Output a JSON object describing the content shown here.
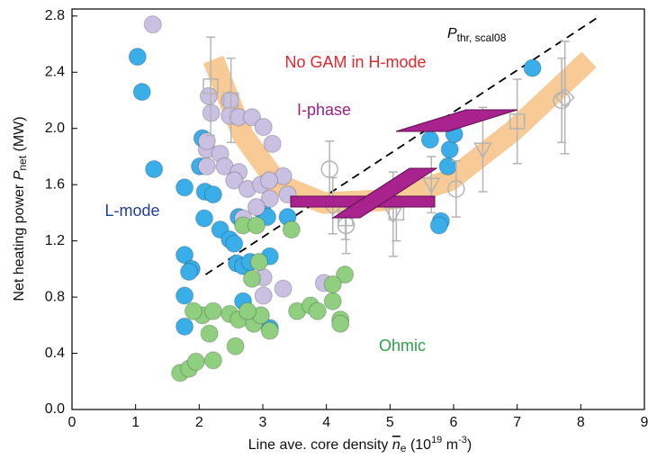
{
  "chart_data": {
    "type": "scatter",
    "ylabel": {
      "text": "Net heating power",
      "symbol": "P",
      "subscript": "net",
      "unit": "(MW)"
    },
    "xlabel": {
      "text": "Line ave. core density",
      "symbol": "n",
      "subscript": "e",
      "unit_parts": [
        "(10",
        "19",
        " m",
        "-3",
        ")"
      ]
    },
    "xlim": [
      0,
      9
    ],
    "xticks": [
      0,
      1,
      2,
      3,
      4,
      5,
      6,
      7,
      8,
      9
    ],
    "ylim": [
      0,
      2.85
    ],
    "yticks": [
      {
        "value": 0,
        "label": "0.0"
      },
      0.4,
      0.8,
      1.2,
      1.6,
      {
        "value": 2,
        "label": "2.0"
      },
      2.4,
      2.8
    ],
    "grid": false,
    "series": [
      {
        "name": "L-mode",
        "color": "#3aaee8",
        "label_color": "#1f3f90",
        "x": [
          1.03,
          1.1,
          1.29,
          1.77,
          2.05,
          2.01,
          2.09,
          2.08,
          2.33,
          2.48,
          2.55,
          1.77,
          1.88,
          1.84,
          1.77,
          1.77,
          2.59,
          2.69,
          2.8,
          3.0,
          3.07,
          3.11,
          3.39,
          2.69,
          3.11,
          5.63,
          5.94,
          6.01,
          5.91,
          5.8,
          5.77,
          7.24,
          2.22,
          2.62
        ],
        "values": [
          2.51,
          2.26,
          1.71,
          1.58,
          1.93,
          1.73,
          1.55,
          1.36,
          1.28,
          1.21,
          1.18,
          1.1,
          1.0,
          0.98,
          0.81,
          0.59,
          1.04,
          1.02,
          1.05,
          1.41,
          1.37,
          1.09,
          1.37,
          0.77,
          0.58,
          1.92,
          1.85,
          1.96,
          1.73,
          1.34,
          1.31,
          2.43,
          1.53,
          1.37
        ]
      },
      {
        "name": "I-phase",
        "color": "#c9c0e2",
        "label_color": "#9b1f88",
        "x": [
          1.27,
          2.15,
          2.19,
          2.48,
          2.48,
          2.62,
          2.83,
          3.01,
          2.12,
          2.33,
          2.12,
          2.4,
          2.62,
          2.55,
          2.76,
          2.97,
          3.11,
          2.9,
          2.69,
          2.12,
          3.32,
          3.1,
          3.39,
          3.01,
          3.01,
          3.32,
          3.96,
          3.15
        ],
        "values": [
          2.74,
          2.23,
          2.11,
          2.2,
          2.09,
          2.08,
          2.08,
          2.01,
          1.85,
          1.82,
          1.73,
          1.73,
          1.69,
          1.63,
          1.57,
          1.6,
          1.5,
          1.44,
          1.36,
          1.91,
          1.66,
          1.63,
          1.53,
          0.94,
          0.81,
          0.86,
          0.9,
          1.89
        ]
      },
      {
        "name": "Ohmic",
        "color": "#8fcf7f",
        "label_color": "#2e9d4a",
        "x": [
          1.7,
          1.84,
          1.95,
          2.22,
          2.57,
          2.16,
          2.05,
          1.91,
          2.22,
          2.48,
          2.62,
          2.86,
          2.97,
          3.11,
          2.76,
          2.83,
          2.94,
          2.69,
          2.9,
          3.45,
          3.54,
          3.75,
          4.1,
          4.29,
          4.22,
          4.22,
          3.86,
          4.1
        ],
        "values": [
          0.26,
          0.29,
          0.34,
          0.35,
          0.45,
          0.54,
          0.67,
          0.7,
          0.7,
          0.68,
          0.64,
          0.61,
          0.67,
          0.56,
          0.7,
          0.93,
          1.05,
          1.31,
          1.31,
          1.28,
          0.7,
          0.74,
          0.77,
          0.96,
          0.64,
          0.61,
          0.7,
          0.89
        ]
      },
      {
        "color": "#b4b4b4",
        "x": [
          2.18,
          2.5,
          4.05,
          4.31,
          4.1,
          4.3,
          5.05,
          5.1,
          5.65,
          6.04,
          6.46,
          7.0,
          7.75,
          7.7
        ],
        "values": [
          2.3,
          2.2,
          1.71,
          1.31,
          1.45,
          1.36,
          1.39,
          1.4,
          1.6,
          1.57,
          1.85,
          2.05,
          2.22,
          2.2
        ],
        "errors": [
          0.35,
          0.3,
          0.2,
          0.2,
          0.2,
          0.15,
          0.3,
          0.2,
          0.2,
          0.2,
          0.3,
          0.3,
          0.4,
          0.3
        ],
        "markers": [
          "square",
          "square",
          "circle",
          "circle",
          "diamond",
          "square",
          "triangle",
          "square",
          "triangle",
          "circle",
          "triangle",
          "square",
          "diamond",
          "circle"
        ]
      }
    ],
    "curves": [
      {
        "style": "band",
        "color": "#f7c48a",
        "x": [
          2.22,
          2.69,
          3.25,
          3.96,
          4.95,
          5.94,
          6.93,
          7.92,
          8.13
        ],
        "values": [
          2.49,
          1.95,
          1.6,
          1.47,
          1.49,
          1.63,
          1.98,
          2.4,
          2.49
        ]
      },
      {
        "style": "dashed",
        "color": "#000000",
        "x": [
          2.1,
          8.3
        ],
        "values": [
          0.96,
          2.8
        ]
      }
    ],
    "annotations": [
      {
        "text": "No GAM in H-mode",
        "color": "#e4262f"
      },
      {
        "symbol": "P",
        "subscript": "thr, scal08",
        "color": "#000000"
      }
    ]
  }
}
